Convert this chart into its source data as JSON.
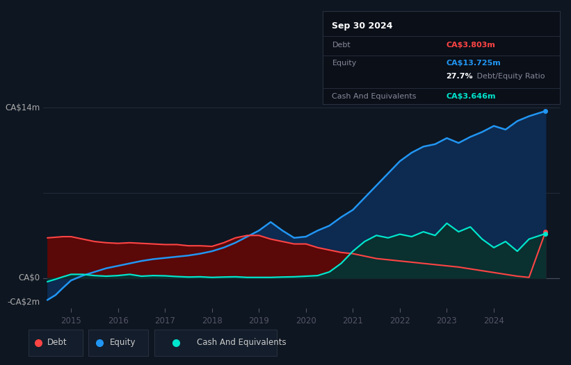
{
  "bg_color": "#0e1621",
  "plot_bg_color": "#0e1621",
  "grid_color_h": "#2a3040",
  "title_box": {
    "date": "Sep 30 2024",
    "debt_label": "Debt",
    "debt_value": "CA$3.803m",
    "debt_color": "#ff4444",
    "equity_label": "Equity",
    "equity_value": "CA$13.725m",
    "equity_color": "#2196f3",
    "ratio_bold": "27.7%",
    "ratio_rest": " Debt/Equity Ratio",
    "cash_label": "Cash And Equivalents",
    "cash_value": "CA$3.646m",
    "cash_color": "#00e5cc",
    "box_bg": "#0a0f18",
    "box_border": "#2a3040",
    "text_color": "#888899",
    "header_color": "#ffffff"
  },
  "ylabel_14": "CA$14m",
  "ylabel_0": "CA$0",
  "ylabel_neg2": "-CA$2m",
  "ylim": [
    -2.5,
    15.5
  ],
  "xlim_start": 2014.4,
  "xlim_end": 2025.4,
  "xticks": [
    2015,
    2016,
    2017,
    2018,
    2019,
    2020,
    2021,
    2022,
    2023,
    2024
  ],
  "debt_color": "#ff4444",
  "equity_color": "#2196f3",
  "cash_color": "#00e5cc",
  "debt_fill_color": "#5a0808",
  "equity_fill_color": "#0d2a50",
  "cash_fill_color": "#0a3030",
  "legend_bg": "#131d2b",
  "legend_border": "#2a3040",
  "debt_data_x": [
    2014.5,
    2014.67,
    2014.83,
    2015.0,
    2015.25,
    2015.5,
    2015.75,
    2016.0,
    2016.25,
    2016.5,
    2016.75,
    2017.0,
    2017.25,
    2017.5,
    2017.75,
    2018.0,
    2018.25,
    2018.5,
    2018.75,
    2019.0,
    2019.25,
    2019.5,
    2019.75,
    2020.0,
    2020.25,
    2020.5,
    2020.75,
    2021.0,
    2021.25,
    2021.5,
    2021.75,
    2022.0,
    2022.25,
    2022.5,
    2022.75,
    2023.0,
    2023.25,
    2023.5,
    2023.75,
    2024.0,
    2024.25,
    2024.5,
    2024.75,
    2025.1
  ],
  "debt_data_y": [
    3.3,
    3.35,
    3.4,
    3.4,
    3.2,
    3.0,
    2.9,
    2.85,
    2.9,
    2.85,
    2.8,
    2.75,
    2.75,
    2.65,
    2.65,
    2.6,
    2.9,
    3.3,
    3.5,
    3.5,
    3.2,
    3.0,
    2.8,
    2.8,
    2.5,
    2.3,
    2.1,
    2.0,
    1.8,
    1.6,
    1.5,
    1.4,
    1.3,
    1.2,
    1.1,
    1.0,
    0.9,
    0.75,
    0.6,
    0.45,
    0.3,
    0.15,
    0.05,
    3.8
  ],
  "equity_data_x": [
    2014.5,
    2014.67,
    2014.83,
    2015.0,
    2015.25,
    2015.5,
    2015.75,
    2016.0,
    2016.25,
    2016.5,
    2016.75,
    2017.0,
    2017.25,
    2017.5,
    2017.75,
    2018.0,
    2018.25,
    2018.5,
    2018.75,
    2019.0,
    2019.25,
    2019.5,
    2019.75,
    2020.0,
    2020.25,
    2020.5,
    2020.75,
    2021.0,
    2021.25,
    2021.5,
    2021.75,
    2022.0,
    2022.25,
    2022.5,
    2022.75,
    2023.0,
    2023.25,
    2023.5,
    2023.75,
    2024.0,
    2024.25,
    2024.5,
    2024.75,
    2025.1
  ],
  "equity_data_y": [
    -1.8,
    -1.4,
    -0.8,
    -0.2,
    0.2,
    0.5,
    0.8,
    1.0,
    1.2,
    1.4,
    1.55,
    1.65,
    1.75,
    1.85,
    2.0,
    2.2,
    2.5,
    2.9,
    3.4,
    3.9,
    4.6,
    3.9,
    3.3,
    3.4,
    3.9,
    4.3,
    5.0,
    5.6,
    6.6,
    7.6,
    8.6,
    9.6,
    10.3,
    10.8,
    11.0,
    11.5,
    11.1,
    11.6,
    12.0,
    12.5,
    12.2,
    12.9,
    13.3,
    13.725
  ],
  "cash_data_x": [
    2014.5,
    2014.67,
    2014.83,
    2015.0,
    2015.25,
    2015.5,
    2015.75,
    2016.0,
    2016.25,
    2016.5,
    2016.75,
    2017.0,
    2017.25,
    2017.5,
    2017.75,
    2018.0,
    2018.25,
    2018.5,
    2018.75,
    2019.0,
    2019.25,
    2019.5,
    2019.75,
    2020.0,
    2020.25,
    2020.5,
    2020.75,
    2021.0,
    2021.25,
    2021.5,
    2021.75,
    2022.0,
    2022.25,
    2022.5,
    2022.75,
    2023.0,
    2023.25,
    2023.5,
    2023.75,
    2024.0,
    2024.25,
    2024.5,
    2024.75,
    2025.1
  ],
  "cash_data_y": [
    -0.3,
    -0.1,
    0.1,
    0.3,
    0.3,
    0.2,
    0.15,
    0.2,
    0.3,
    0.15,
    0.2,
    0.18,
    0.12,
    0.08,
    0.1,
    0.05,
    0.08,
    0.1,
    0.05,
    0.05,
    0.05,
    0.08,
    0.1,
    0.15,
    0.2,
    0.5,
    1.2,
    2.2,
    3.0,
    3.5,
    3.3,
    3.6,
    3.4,
    3.8,
    3.5,
    4.5,
    3.8,
    4.2,
    3.2,
    2.5,
    3.0,
    2.2,
    3.2,
    3.646
  ]
}
